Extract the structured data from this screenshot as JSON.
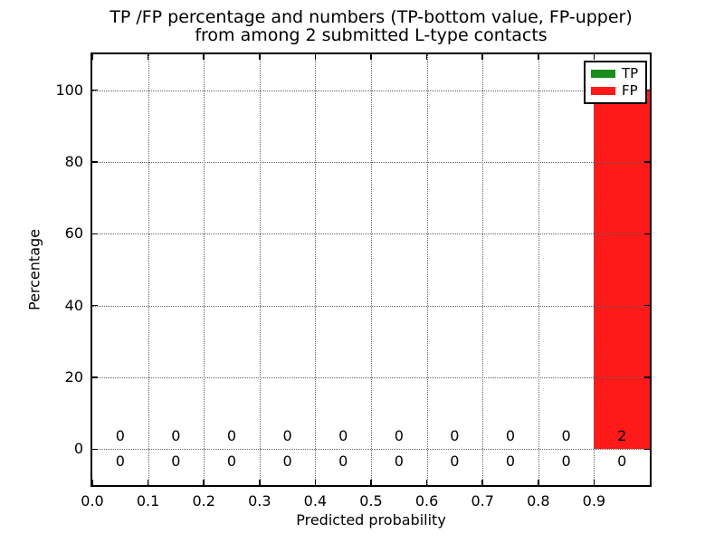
{
  "chart_data": {
    "type": "bar",
    "stacked": true,
    "title_line1": "TP /FP percentage and numbers (TP-bottom value, FP-upper)",
    "title_line2": "from among 2 submitted L-type contacts",
    "xlabel": "Predicted probability",
    "ylabel": "Percentage",
    "xlim": [
      0.0,
      1.0
    ],
    "ylim": [
      -10,
      110
    ],
    "xtick_values": [
      0.0,
      0.1,
      0.2,
      0.3,
      0.4,
      0.5,
      0.6,
      0.7,
      0.8,
      0.9
    ],
    "xtick_labels": [
      "0.0",
      "0.1",
      "0.2",
      "0.3",
      "0.4",
      "0.5",
      "0.6",
      "0.7",
      "0.8",
      "0.9"
    ],
    "ytick_values": [
      0,
      20,
      40,
      60,
      80,
      100
    ],
    "ytick_labels": [
      "0",
      "20",
      "40",
      "60",
      "80",
      "100"
    ],
    "grid": {
      "style": "dotted",
      "color": "#606060"
    },
    "bin_edges": [
      0.0,
      0.1,
      0.2,
      0.3,
      0.4,
      0.5,
      0.6,
      0.7,
      0.8,
      0.9,
      1.0
    ],
    "series": [
      {
        "name": "TP",
        "color": "#1a8c1a",
        "percent": [
          0,
          0,
          0,
          0,
          0,
          0,
          0,
          0,
          0,
          0
        ],
        "counts": [
          0,
          0,
          0,
          0,
          0,
          0,
          0,
          0,
          0,
          0
        ],
        "count_row": "bottom"
      },
      {
        "name": "FP",
        "color": "#ff1a1a",
        "percent": [
          0,
          0,
          0,
          0,
          0,
          0,
          0,
          0,
          0,
          100
        ],
        "counts": [
          0,
          0,
          0,
          0,
          0,
          0,
          0,
          0,
          0,
          2
        ],
        "count_row": "top"
      }
    ],
    "legend": {
      "position": "upper right",
      "entries": [
        {
          "label": "TP",
          "color": "#1a8c1a"
        },
        {
          "label": "FP",
          "color": "#ff1a1a"
        }
      ]
    }
  }
}
